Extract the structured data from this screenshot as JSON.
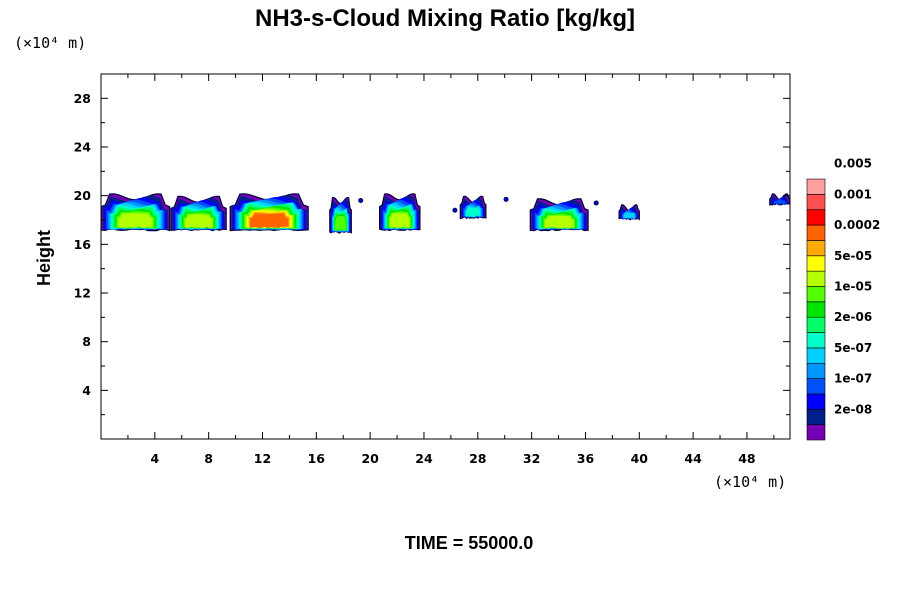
{
  "chart_data": {
    "type": "heatmap",
    "title": "NH3-s-Cloud Mixing Ratio [kg/kg]",
    "ylabel": "Height",
    "y_unit_label": "(×10⁴ m)",
    "x_unit_label": "(×10⁴ m)",
    "xlim": [
      0,
      51.2
    ],
    "ylim": [
      0,
      30
    ],
    "x_ticks": [
      4,
      8,
      12,
      16,
      20,
      24,
      28,
      32,
      36,
      40,
      44,
      48
    ],
    "y_ticks": [
      4,
      8,
      12,
      16,
      20,
      24,
      28
    ],
    "footer": "TIME = 55000.0",
    "colorbar": {
      "colors": [
        "#7800b4",
        "#001e8c",
        "#0000ff",
        "#0050ff",
        "#0096ff",
        "#00d2ff",
        "#00ffc8",
        "#00ff64",
        "#00e600",
        "#50ff00",
        "#b4ff00",
        "#ffff00",
        "#ffaa00",
        "#ff6400",
        "#ff0000",
        "#ff5050",
        "#ffa0a0"
      ],
      "labels": [
        "2e-08",
        "1e-07",
        "5e-07",
        "2e-06",
        "1e-05",
        "5e-05",
        "0.0002",
        "0.001",
        "0.005"
      ]
    },
    "cloud_cells": [
      {
        "x0": 0.0,
        "x1": 5.1,
        "y_bottom": 17.2,
        "y_top": 19.9,
        "peak_level": 10
      },
      {
        "x0": 5.2,
        "x1": 9.3,
        "y_bottom": 17.2,
        "y_top": 19.7,
        "peak_level": 10
      },
      {
        "x0": 9.6,
        "x1": 15.4,
        "y_bottom": 17.2,
        "y_top": 19.9,
        "peak_level": 13
      },
      {
        "x0": 17.0,
        "x1": 18.6,
        "y_bottom": 17.0,
        "y_top": 19.6,
        "peak_level": 9
      },
      {
        "x0": 20.7,
        "x1": 23.7,
        "y_bottom": 17.2,
        "y_top": 19.9,
        "peak_level": 10
      },
      {
        "x0": 26.7,
        "x1": 28.6,
        "y_bottom": 18.2,
        "y_top": 19.7,
        "peak_level": 6
      },
      {
        "x0": 31.9,
        "x1": 36.2,
        "y_bottom": 17.2,
        "y_top": 19.5,
        "peak_level": 10
      },
      {
        "x0": 38.5,
        "x1": 40.0,
        "y_bottom": 18.1,
        "y_top": 19.0,
        "peak_level": 5
      },
      {
        "x0": 49.7,
        "x1": 51.2,
        "y_bottom": 19.3,
        "y_top": 19.9,
        "peak_level": 3
      }
    ],
    "cloud_specks": [
      {
        "x": 19.3,
        "y": 19.6
      },
      {
        "x": 26.3,
        "y": 18.8
      },
      {
        "x": 30.1,
        "y": 19.7
      },
      {
        "x": 36.8,
        "y": 19.4
      }
    ]
  }
}
